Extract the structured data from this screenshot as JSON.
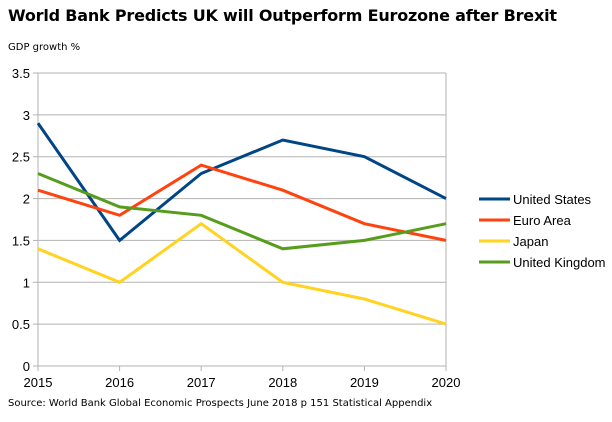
{
  "chart_data": {
    "type": "line",
    "title": "World Bank Predicts UK will Outperform Eurozone after Brexit",
    "xlabel": "",
    "ylabel": "GDP growth %",
    "source": "Source: World Bank Global Economic Prospects June 2018 p 151 Statistical Appendix",
    "x": [
      "2015",
      "2016",
      "2017",
      "2018",
      "2019",
      "2020"
    ],
    "ylim": [
      0,
      3.5
    ],
    "yticks": [
      "0",
      "0.5",
      "1",
      "1.5",
      "2",
      "2.5",
      "3",
      "3.5"
    ],
    "grid": true,
    "legend_position": "right",
    "series": [
      {
        "name": "United States",
        "color": "#004586",
        "values": [
          2.9,
          1.5,
          2.3,
          2.7,
          2.5,
          2.0
        ]
      },
      {
        "name": "Euro Area",
        "color": "#ff420e",
        "values": [
          2.1,
          1.8,
          2.4,
          2.1,
          1.7,
          1.5
        ]
      },
      {
        "name": "Japan",
        "color": "#ffd320",
        "values": [
          1.4,
          1.0,
          1.7,
          1.0,
          0.8,
          0.5
        ]
      },
      {
        "name": "United Kingdom",
        "color": "#579d1c",
        "values": [
          2.3,
          1.9,
          1.8,
          1.4,
          1.5,
          1.7
        ]
      }
    ]
  }
}
